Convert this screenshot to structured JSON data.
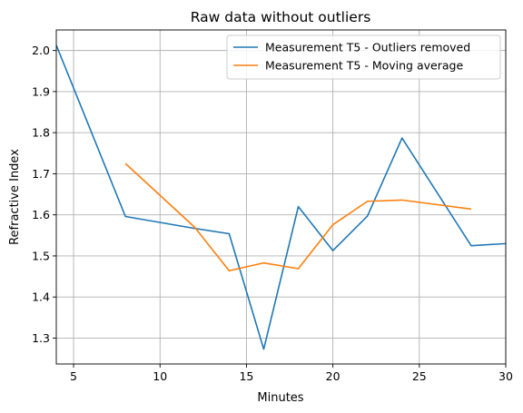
{
  "chart_data": {
    "type": "line",
    "title": "Raw data without outliers",
    "xlabel": "Minutes",
    "ylabel": "Refractive Index",
    "xlim": [
      4,
      30
    ],
    "ylim": [
      1.237,
      2.05
    ],
    "grid": true,
    "legend_position": "top-right",
    "x_ticks": [
      5,
      10,
      15,
      20,
      25,
      30
    ],
    "y_ticks": [
      1.3,
      1.4,
      1.5,
      1.6,
      1.7,
      1.8,
      1.9,
      2.0
    ],
    "x_tick_labels": [
      "5",
      "10",
      "15",
      "20",
      "25",
      "30"
    ],
    "y_tick_labels": [
      "1.3",
      "1.4",
      "1.5",
      "1.6",
      "1.7",
      "1.8",
      "1.9",
      "2.0"
    ],
    "series": [
      {
        "name": "Measurement T5 - Outliers removed",
        "color": "#1f77b4",
        "x": [
          4,
          8,
          12,
          14,
          16,
          18,
          20,
          22,
          24,
          28,
          30
        ],
        "y": [
          2.013,
          1.596,
          1.567,
          1.554,
          1.273,
          1.62,
          1.513,
          1.597,
          1.787,
          1.525,
          1.53
        ]
      },
      {
        "name": "Measurement T5 - Moving average",
        "color": "#ff7f0e",
        "x": [
          8,
          12,
          14,
          16,
          18,
          20,
          22,
          24,
          28
        ],
        "y": [
          1.725,
          1.57,
          1.464,
          1.483,
          1.469,
          1.576,
          1.633,
          1.636,
          1.614
        ]
      }
    ]
  }
}
